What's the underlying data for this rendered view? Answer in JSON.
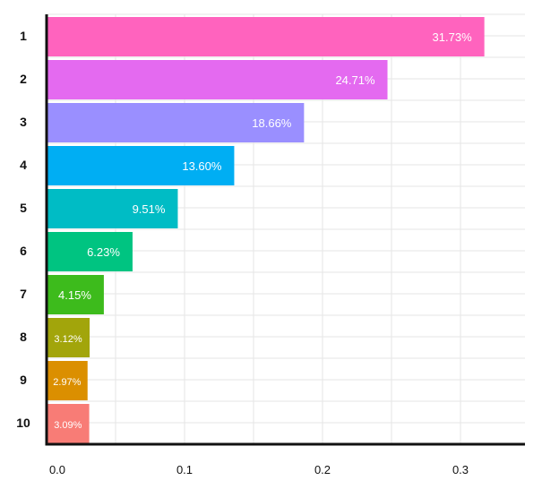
{
  "chart_data": {
    "type": "bar",
    "orientation": "horizontal",
    "categories": [
      "1",
      "2",
      "3",
      "4",
      "5",
      "6",
      "7",
      "8",
      "9",
      "10"
    ],
    "values": [
      0.3173,
      0.2471,
      0.1866,
      0.136,
      0.0951,
      0.0623,
      0.0415,
      0.0312,
      0.0297,
      0.0309
    ],
    "data_labels": [
      "31.73%",
      "24.71%",
      "18.66%",
      "13.60%",
      "9.51%",
      "6.23%",
      "4.15%",
      "3.12%",
      "2.97%",
      "3.09%"
    ],
    "colors": [
      "#FF63BE",
      "#E46AF0",
      "#9A8FFF",
      "#00AEF3",
      "#00BCC5",
      "#00C481",
      "#3DBB1C",
      "#A2A50B",
      "#DB8F00",
      "#F87C76"
    ],
    "x_ticks": [
      0.0,
      0.1,
      0.2,
      0.3
    ],
    "x_tick_labels": [
      "0.0",
      "0.1",
      "0.2",
      "0.3"
    ],
    "xlim": [
      0,
      0.34
    ],
    "grid": true,
    "legend": "none",
    "title": "",
    "xlabel": "",
    "ylabel": ""
  }
}
